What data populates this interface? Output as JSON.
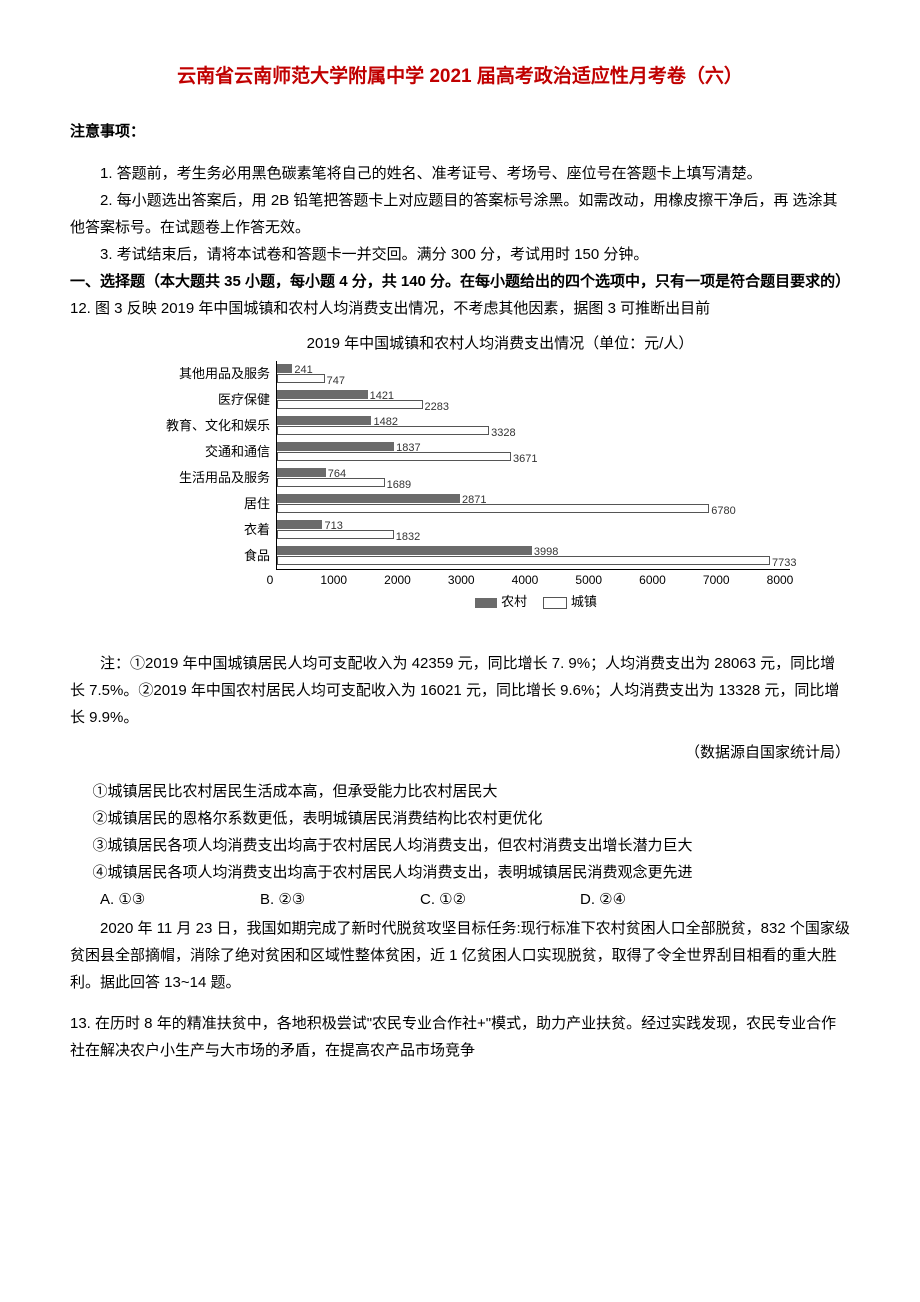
{
  "title": "云南省云南师范大学附属中学 2021 届高考政治适应性月考卷（六）",
  "notice_heading": "注意事项：",
  "notices": [
    "1. 答题前，考生务必用黑色碳素笔将自己的姓名、准考证号、考场号、座位号在答题卡上填写清楚。",
    "2. 每小题选出答案后，用 2B 铅笔把答题卡上对应题目的答案标号涂黑。如需改动，用橡皮擦干净后，再 选涂其他答案标号。在试题卷上作答无效。",
    "3. 考试结束后，请将本试卷和答题卡一并交回。满分 300 分，考试用时 150 分钟。"
  ],
  "section1_heading": "一、选择题（本大题共 35 小题，每小题 4 分，共 140 分。在每小题给出的四个选项中，只有一项是符合题目要求的）",
  "q12_stem": "12. 图 3 反映 2019 年中国城镇和农村人均消费支出情况，不考虑其他因素，据图 3 可推断出目前",
  "chart": {
    "title": "2019 年中国城镇和农村人均消费支出情况（单位：元/人）",
    "categories": [
      "其他用品及服务",
      "医疗保健",
      "教育、文化和娱乐",
      "交通和通信",
      "生活用品及服务",
      "居住",
      "衣着",
      "食品"
    ],
    "rural": [
      241,
      1421,
      1482,
      1837,
      764,
      2871,
      713,
      3998
    ],
    "urban": [
      747,
      2283,
      3328,
      3671,
      1689,
      6780,
      1832,
      7733
    ],
    "xmax": 8000,
    "xtick_step": 1000,
    "rural_color": "#6b6b6b",
    "urban_color": "#ffffff",
    "urban_border": "#555555",
    "legend_rural": "农村",
    "legend_urban": "城镇"
  },
  "chart_note": "注：①2019 年中国城镇居民人均可支配收入为 42359 元，同比增长 7. 9%；人均消费支出为 28063 元，同比增长 7.5%。②2019 年中国农村居民人均可支配收入为 16021 元，同比增长 9.6%；人均消费支出为 13328 元，同比增长 9.9%。",
  "source": "（数据源自国家统计局）",
  "q12_items": [
    "①城镇居民比农村居民生活成本高，但承受能力比农村居民大",
    "②城镇居民的恩格尔系数更低，表明城镇居民消费结构比农村更优化",
    "③城镇居民各项人均消费支出均高于农村居民人均消费支出，但农村消费支出增长潜力巨大",
    "④城镇居民各项人均消费支出均高于农村居民人均消费支出，表明城镇居民消费观念更先进"
  ],
  "q12_options": {
    "A": "A. ①③",
    "B": "B. ②③",
    "C": "C. ①②",
    "D": "D. ②④"
  },
  "passage_13_14": "2020 年 11 月 23 日，我国如期完成了新时代脱贫攻坚目标任务:现行标准下农村贫困人口全部脱贫，832 个国家级贫困县全部摘帽，消除了绝对贫困和区域性整体贫困，近 1 亿贫困人口实现脱贫，取得了令全世界刮目相看的重大胜利。据此回答 13~14 题。",
  "q13_stem": "13. 在历时 8 年的精准扶贫中，各地积极尝试\"农民专业合作社+\"模式，助力产业扶贫。经过实践发现，农民专业合作社在解决农户小生产与大市场的矛盾，在提高农产品市场竞争"
}
